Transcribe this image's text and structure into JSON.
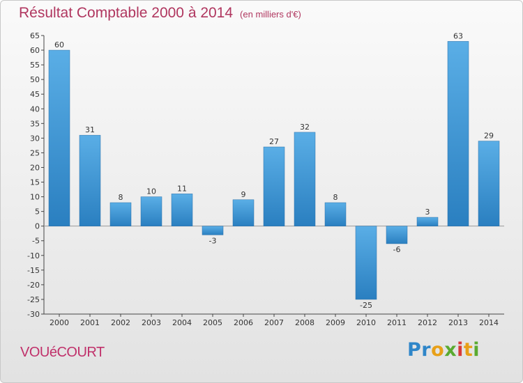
{
  "header": {
    "title": "Résultat Comptable 2000 à 2014",
    "subtitle": "(en milliers d'€)"
  },
  "footer": {
    "place": "VOUéCOURT",
    "logo": "Proxiti"
  },
  "colors": {
    "title": "#b0365f",
    "bar_top": "#5aaee6",
    "bar_bottom": "#2a7fc0",
    "grid": "#d0d0d0"
  },
  "chart_data": {
    "type": "bar",
    "title": "Résultat Comptable 2000 à 2014",
    "subtitle": "(en milliers d'€)",
    "categories": [
      "2000",
      "2001",
      "2002",
      "2003",
      "2004",
      "2005",
      "2006",
      "2007",
      "2008",
      "2009",
      "2010",
      "2011",
      "2012",
      "2013",
      "2014"
    ],
    "values": [
      60,
      31,
      8,
      10,
      11,
      -3,
      9,
      27,
      32,
      8,
      -25,
      -6,
      3,
      63,
      29
    ],
    "ylim": [
      -30,
      65
    ],
    "yticks": [
      65,
      60,
      55,
      50,
      45,
      40,
      35,
      30,
      25,
      20,
      15,
      10,
      5,
      0,
      -5,
      -10,
      -15,
      -20,
      -25,
      -30
    ],
    "grid": false,
    "data_labels": true
  }
}
